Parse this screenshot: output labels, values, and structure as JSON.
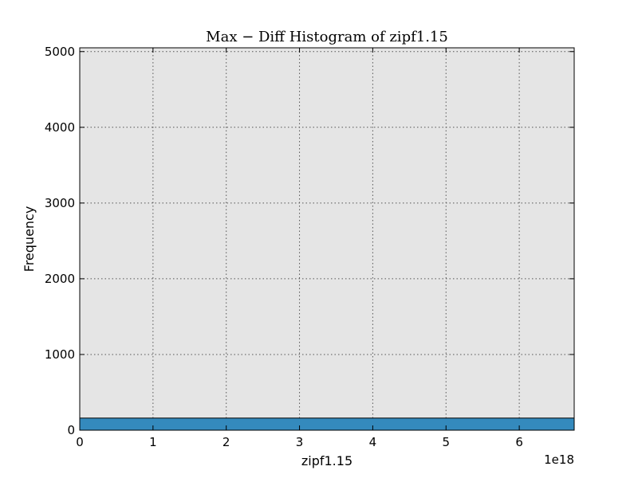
{
  "chart_data": {
    "type": "bar",
    "title": "Max − Diff Histogram of zipf1.15",
    "xlabel": "zipf1.15",
    "ylabel": "Frequency",
    "x_offset_label": "1e18",
    "xlim": [
      0,
      6.75
    ],
    "ylim": [
      0,
      5050
    ],
    "xticks": [
      0,
      1,
      2,
      3,
      4,
      5,
      6
    ],
    "yticks": [
      0,
      1000,
      2000,
      3000,
      4000,
      5000
    ],
    "grid": true,
    "bins": [
      {
        "x0": 0,
        "x1": 6.75,
        "value": 160
      }
    ],
    "colors": {
      "bar": "#348ABD",
      "plot_background": "#E5E5E5",
      "grid": "#555555"
    }
  }
}
